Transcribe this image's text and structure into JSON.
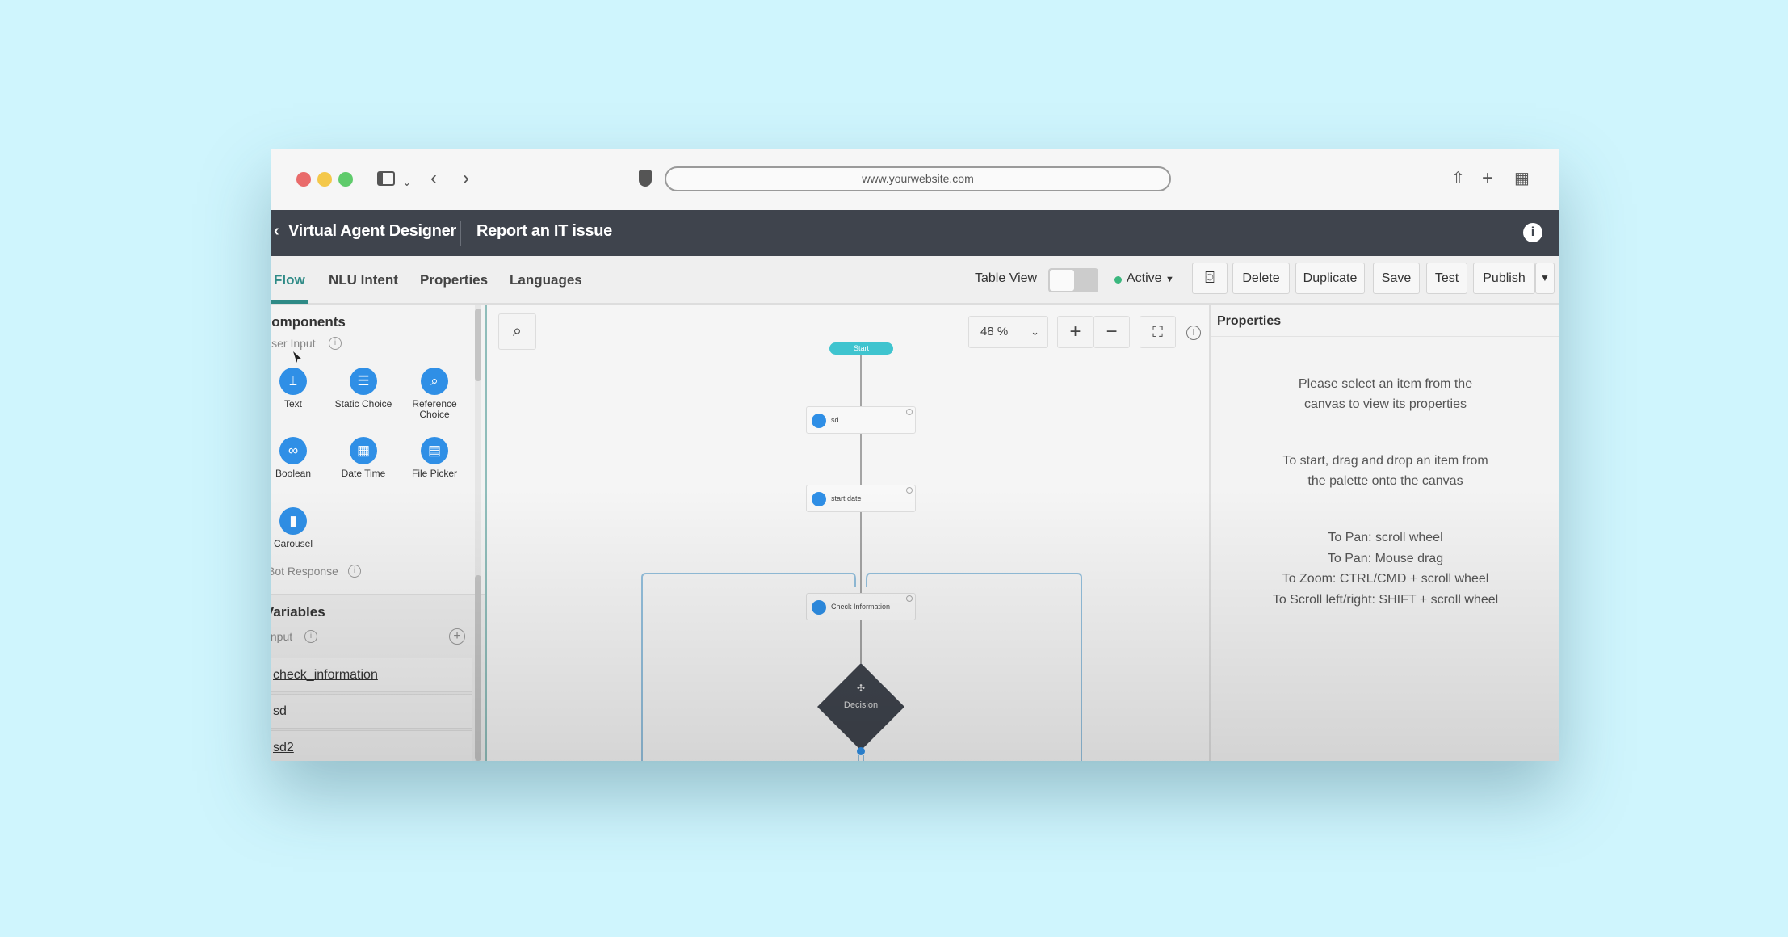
{
  "browser": {
    "url": "www.yourwebsite.com"
  },
  "header": {
    "app_title": "Virtual Agent Designer",
    "topic_title": "Report an IT issue"
  },
  "tabs": [
    {
      "label": "Flow",
      "active": true
    },
    {
      "label": "NLU Intent"
    },
    {
      "label": "Properties"
    },
    {
      "label": "Languages"
    }
  ],
  "toolbar": {
    "table_view_label": "Table View",
    "table_view_on": false,
    "status": "Active",
    "status_color": "#3bb77e",
    "delete": "Delete",
    "duplicate": "Duplicate",
    "save": "Save",
    "test": "Test",
    "publish": "Publish"
  },
  "components": {
    "title": "Components",
    "user_input_label": "User Input",
    "items": [
      {
        "label": "Text",
        "icon": "text-input-icon"
      },
      {
        "label": "Static Choice",
        "icon": "list-icon"
      },
      {
        "label": "Reference Choice",
        "icon": "search-icon"
      },
      {
        "label": "Boolean",
        "icon": "toggle-icon"
      },
      {
        "label": "Date Time",
        "icon": "calendar-icon"
      },
      {
        "label": "File Picker",
        "icon": "file-icon"
      },
      {
        "label": "Carousel",
        "icon": "carousel-icon"
      }
    ],
    "bot_response_label": "Bot Response"
  },
  "variables": {
    "title": "Variables",
    "input_label": "Input",
    "items": [
      "check_information",
      "sd",
      "sd2"
    ]
  },
  "canvas": {
    "zoom": "48 %",
    "start": "Start",
    "nodes": [
      "sd",
      "start date",
      "Check Information"
    ],
    "decision": "Decision"
  },
  "properties": {
    "title": "Properties",
    "msg1": "Please select an item from the canvas to view its properties",
    "msg2": "To start, drag and drop an item from the palette onto the canvas",
    "hints": [
      "To Pan: scroll wheel",
      "To Pan: Mouse drag",
      "To Zoom: CTRL/CMD + scroll wheel",
      "To Scroll left/right: SHIFT + scroll wheel"
    ]
  },
  "colors": {
    "accent": "#2f8fe6",
    "header_bg": "#3f444d",
    "start": "#3fc4cf",
    "tab_active": "#2e8a86"
  }
}
